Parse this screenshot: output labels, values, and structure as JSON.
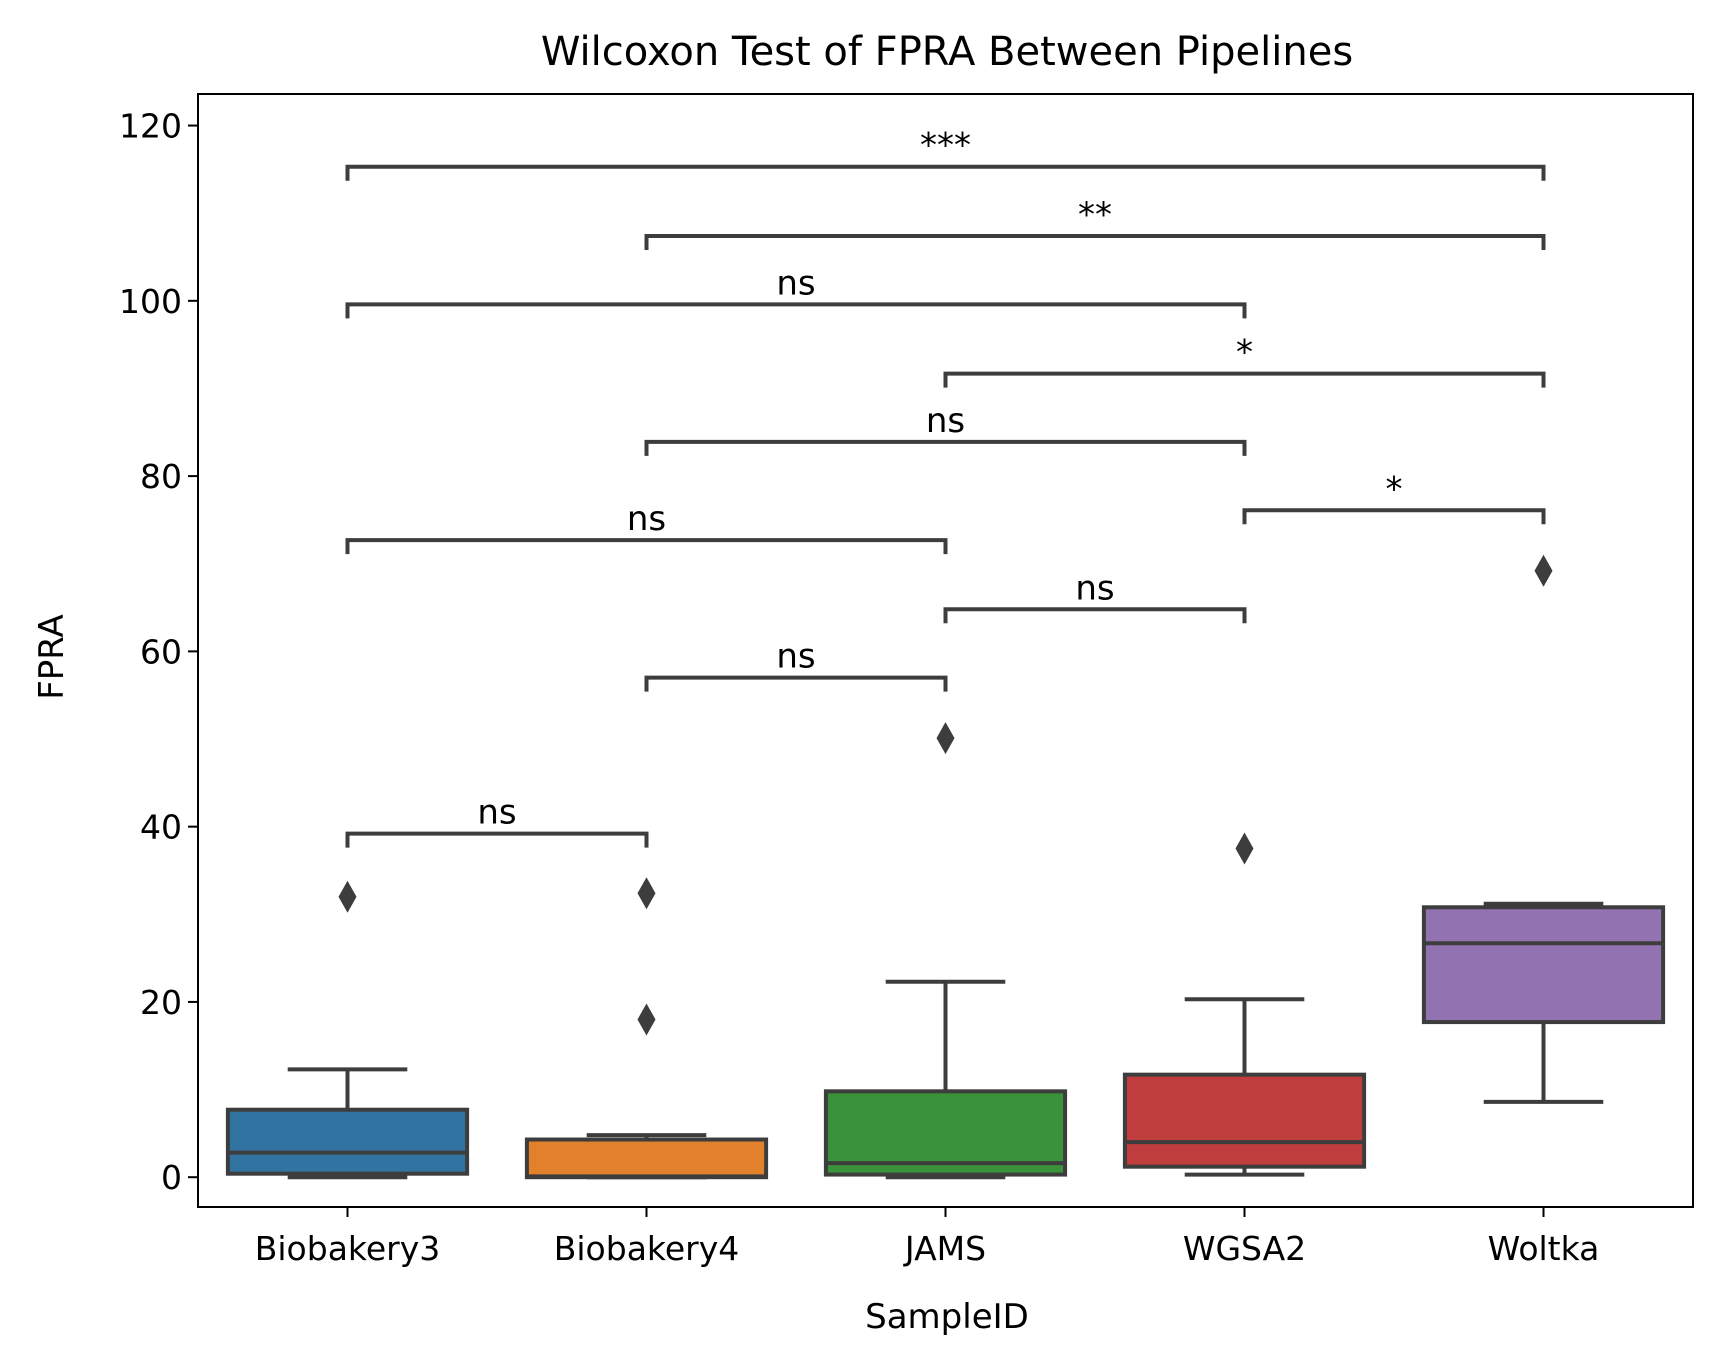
{
  "chart_data": {
    "type": "box",
    "title": "Wilcoxon Test of FPRA Between Pipelines",
    "xlabel": "SampleID",
    "ylabel": "FPRA",
    "ylim": [
      -3.4,
      123.6
    ],
    "yticks": [
      0,
      20,
      40,
      60,
      80,
      100,
      120
    ],
    "categories": [
      "Biobakery3",
      "Biobakery4",
      "JAMS",
      "WGSA2",
      "Woltka"
    ],
    "colors": [
      "#3274a1",
      "#e1812c",
      "#3a923a",
      "#c03d3e",
      "#9372b2"
    ],
    "line_color": "#3d3d3d",
    "boxes": [
      {
        "category": "Biobakery3",
        "whislo": 0,
        "q1": 0.4,
        "med": 2.8,
        "q3": 7.7,
        "whishi": 12.3,
        "fliers": [
          32
        ]
      },
      {
        "category": "Biobakery4",
        "whislo": 0,
        "q1": 0,
        "med": 0.1,
        "q3": 4.3,
        "whishi": 4.8,
        "fliers": [
          18,
          32.4
        ]
      },
      {
        "category": "JAMS",
        "whislo": 0,
        "q1": 0.3,
        "med": 1.6,
        "q3": 9.8,
        "whishi": 22.3,
        "fliers": [
          50.1
        ]
      },
      {
        "category": "WGSA2",
        "whislo": 0.3,
        "q1": 1.2,
        "med": 4,
        "q3": 11.7,
        "whishi": 20.3,
        "fliers": [
          37.5
        ]
      },
      {
        "category": "Woltka",
        "whislo": 8.6,
        "q1": 17.7,
        "med": 26.7,
        "q3": 30.8,
        "whishi": 31.2,
        "fliers": [
          69.2
        ]
      }
    ],
    "annotations": [
      {
        "from": "Biobakery3",
        "to": "Biobakery4",
        "y": 39.2,
        "label": "ns"
      },
      {
        "from": "Biobakery4",
        "to": "JAMS",
        "y": 57,
        "label": "ns"
      },
      {
        "from": "JAMS",
        "to": "WGSA2",
        "y": 64.8,
        "label": "ns"
      },
      {
        "from": "Biobakery3",
        "to": "JAMS",
        "y": 72.7,
        "label": "ns"
      },
      {
        "from": "WGSA2",
        "to": "Woltka",
        "y": 76.1,
        "label": "*"
      },
      {
        "from": "Biobakery4",
        "to": "WGSA2",
        "y": 83.9,
        "label": "ns"
      },
      {
        "from": "JAMS",
        "to": "Woltka",
        "y": 91.7,
        "label": "*"
      },
      {
        "from": "Biobakery3",
        "to": "WGSA2",
        "y": 99.6,
        "label": "ns"
      },
      {
        "from": "Biobakery4",
        "to": "Woltka",
        "y": 107.4,
        "label": "**"
      },
      {
        "from": "Biobakery3",
        "to": "Woltka",
        "y": 115.3,
        "label": "***"
      }
    ]
  }
}
